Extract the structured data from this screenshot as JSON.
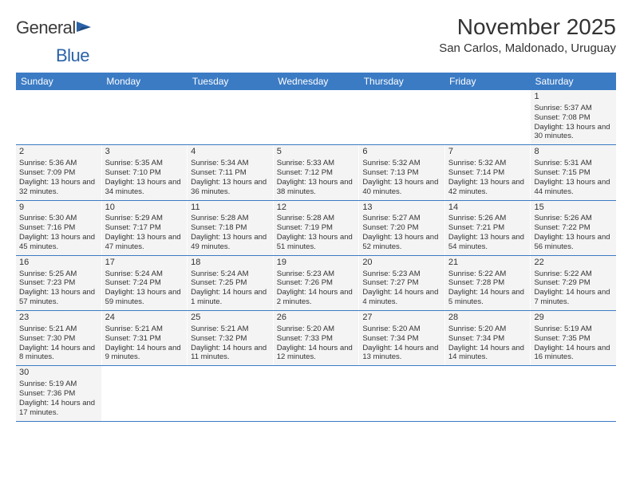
{
  "logo": {
    "main": "General",
    "sub": "Blue"
  },
  "title": "November 2025",
  "location": "San Carlos, Maldonado, Uruguay",
  "colors": {
    "header_bg": "#3b7bc4",
    "header_text": "#ffffff",
    "cell_bg": "#f4f4f4",
    "page_bg": "#ffffff",
    "text": "#333333",
    "logo_blue": "#2a62a8",
    "row_border": "#3b7bc4"
  },
  "weekdays": [
    "Sunday",
    "Monday",
    "Tuesday",
    "Wednesday",
    "Thursday",
    "Friday",
    "Saturday"
  ],
  "weeks": [
    [
      null,
      null,
      null,
      null,
      null,
      null,
      {
        "n": "1",
        "sunrise": "5:37 AM",
        "sunset": "7:08 PM",
        "daylight": "13 hours and 30 minutes."
      }
    ],
    [
      {
        "n": "2",
        "sunrise": "5:36 AM",
        "sunset": "7:09 PM",
        "daylight": "13 hours and 32 minutes."
      },
      {
        "n": "3",
        "sunrise": "5:35 AM",
        "sunset": "7:10 PM",
        "daylight": "13 hours and 34 minutes."
      },
      {
        "n": "4",
        "sunrise": "5:34 AM",
        "sunset": "7:11 PM",
        "daylight": "13 hours and 36 minutes."
      },
      {
        "n": "5",
        "sunrise": "5:33 AM",
        "sunset": "7:12 PM",
        "daylight": "13 hours and 38 minutes."
      },
      {
        "n": "6",
        "sunrise": "5:32 AM",
        "sunset": "7:13 PM",
        "daylight": "13 hours and 40 minutes."
      },
      {
        "n": "7",
        "sunrise": "5:32 AM",
        "sunset": "7:14 PM",
        "daylight": "13 hours and 42 minutes."
      },
      {
        "n": "8",
        "sunrise": "5:31 AM",
        "sunset": "7:15 PM",
        "daylight": "13 hours and 44 minutes."
      }
    ],
    [
      {
        "n": "9",
        "sunrise": "5:30 AM",
        "sunset": "7:16 PM",
        "daylight": "13 hours and 45 minutes."
      },
      {
        "n": "10",
        "sunrise": "5:29 AM",
        "sunset": "7:17 PM",
        "daylight": "13 hours and 47 minutes."
      },
      {
        "n": "11",
        "sunrise": "5:28 AM",
        "sunset": "7:18 PM",
        "daylight": "13 hours and 49 minutes."
      },
      {
        "n": "12",
        "sunrise": "5:28 AM",
        "sunset": "7:19 PM",
        "daylight": "13 hours and 51 minutes."
      },
      {
        "n": "13",
        "sunrise": "5:27 AM",
        "sunset": "7:20 PM",
        "daylight": "13 hours and 52 minutes."
      },
      {
        "n": "14",
        "sunrise": "5:26 AM",
        "sunset": "7:21 PM",
        "daylight": "13 hours and 54 minutes."
      },
      {
        "n": "15",
        "sunrise": "5:26 AM",
        "sunset": "7:22 PM",
        "daylight": "13 hours and 56 minutes."
      }
    ],
    [
      {
        "n": "16",
        "sunrise": "5:25 AM",
        "sunset": "7:23 PM",
        "daylight": "13 hours and 57 minutes."
      },
      {
        "n": "17",
        "sunrise": "5:24 AM",
        "sunset": "7:24 PM",
        "daylight": "13 hours and 59 minutes."
      },
      {
        "n": "18",
        "sunrise": "5:24 AM",
        "sunset": "7:25 PM",
        "daylight": "14 hours and 1 minute."
      },
      {
        "n": "19",
        "sunrise": "5:23 AM",
        "sunset": "7:26 PM",
        "daylight": "14 hours and 2 minutes."
      },
      {
        "n": "20",
        "sunrise": "5:23 AM",
        "sunset": "7:27 PM",
        "daylight": "14 hours and 4 minutes."
      },
      {
        "n": "21",
        "sunrise": "5:22 AM",
        "sunset": "7:28 PM",
        "daylight": "14 hours and 5 minutes."
      },
      {
        "n": "22",
        "sunrise": "5:22 AM",
        "sunset": "7:29 PM",
        "daylight": "14 hours and 7 minutes."
      }
    ],
    [
      {
        "n": "23",
        "sunrise": "5:21 AM",
        "sunset": "7:30 PM",
        "daylight": "14 hours and 8 minutes."
      },
      {
        "n": "24",
        "sunrise": "5:21 AM",
        "sunset": "7:31 PM",
        "daylight": "14 hours and 9 minutes."
      },
      {
        "n": "25",
        "sunrise": "5:21 AM",
        "sunset": "7:32 PM",
        "daylight": "14 hours and 11 minutes."
      },
      {
        "n": "26",
        "sunrise": "5:20 AM",
        "sunset": "7:33 PM",
        "daylight": "14 hours and 12 minutes."
      },
      {
        "n": "27",
        "sunrise": "5:20 AM",
        "sunset": "7:34 PM",
        "daylight": "14 hours and 13 minutes."
      },
      {
        "n": "28",
        "sunrise": "5:20 AM",
        "sunset": "7:34 PM",
        "daylight": "14 hours and 14 minutes."
      },
      {
        "n": "29",
        "sunrise": "5:19 AM",
        "sunset": "7:35 PM",
        "daylight": "14 hours and 16 minutes."
      }
    ],
    [
      {
        "n": "30",
        "sunrise": "5:19 AM",
        "sunset": "7:36 PM",
        "daylight": "14 hours and 17 minutes."
      },
      null,
      null,
      null,
      null,
      null,
      null
    ]
  ],
  "labels": {
    "sunrise_prefix": "Sunrise: ",
    "sunset_prefix": "Sunset: ",
    "daylight_prefix": "Daylight: "
  }
}
